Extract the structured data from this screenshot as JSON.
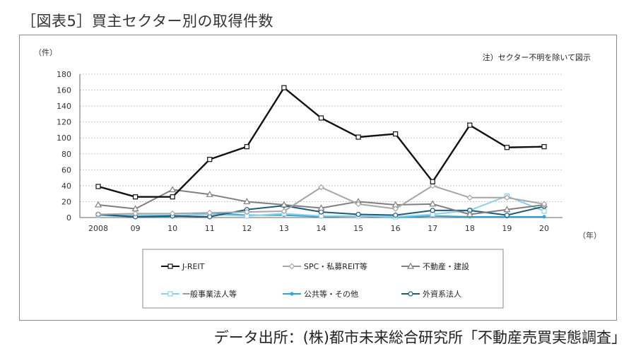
{
  "title": "［図表5］買主セクター別の取得件数",
  "source": "データ出所：(株)都市未来総合研究所「不動産売買実態調査」",
  "chart_data": {
    "type": "line",
    "ylabel": "（件）",
    "xlabel": "（年）",
    "note": "注）セクター不明を除いて図示",
    "ylim": [
      0,
      180
    ],
    "yticks": [
      0,
      20,
      40,
      60,
      80,
      100,
      120,
      140,
      160,
      180
    ],
    "categories": [
      "2008",
      "09",
      "10",
      "11",
      "12",
      "13",
      "14",
      "15",
      "16",
      "17",
      "18",
      "19",
      "20"
    ],
    "grid": true,
    "legend_position": "bottom",
    "series": [
      {
        "name": "J-REIT",
        "color": "#111111",
        "marker": "square",
        "values": [
          39,
          26,
          26,
          73,
          89,
          163,
          125,
          101,
          105,
          45,
          116,
          88,
          89
        ]
      },
      {
        "name": "SPC・私募REIT等",
        "color": "#a6a6a6",
        "marker": "diamond",
        "values": [
          4,
          5,
          5,
          6,
          7,
          8,
          38,
          17,
          11,
          40,
          25,
          25,
          17
        ]
      },
      {
        "name": "不動産・建設",
        "color": "#7f7f7f",
        "marker": "triangle",
        "values": [
          16,
          11,
          35,
          29,
          20,
          16,
          12,
          20,
          16,
          17,
          4,
          10,
          16
        ]
      },
      {
        "name": "一般事業法人等",
        "color": "#8fd0e8",
        "marker": "square",
        "values": [
          3,
          3,
          3,
          4,
          2,
          5,
          2,
          2,
          1,
          4,
          9,
          27,
          8
        ]
      },
      {
        "name": "公共等・その他",
        "color": "#2aa7d6",
        "marker": "dot",
        "values": [
          3,
          1,
          1,
          6,
          3,
          3,
          1,
          2,
          0,
          2,
          1,
          1,
          1
        ]
      },
      {
        "name": "外資系法人",
        "color": "#1f5a7a",
        "marker": "circle",
        "values": [
          4,
          1,
          2,
          1,
          10,
          15,
          7,
          4,
          3,
          9,
          9,
          3,
          14
        ]
      }
    ]
  }
}
